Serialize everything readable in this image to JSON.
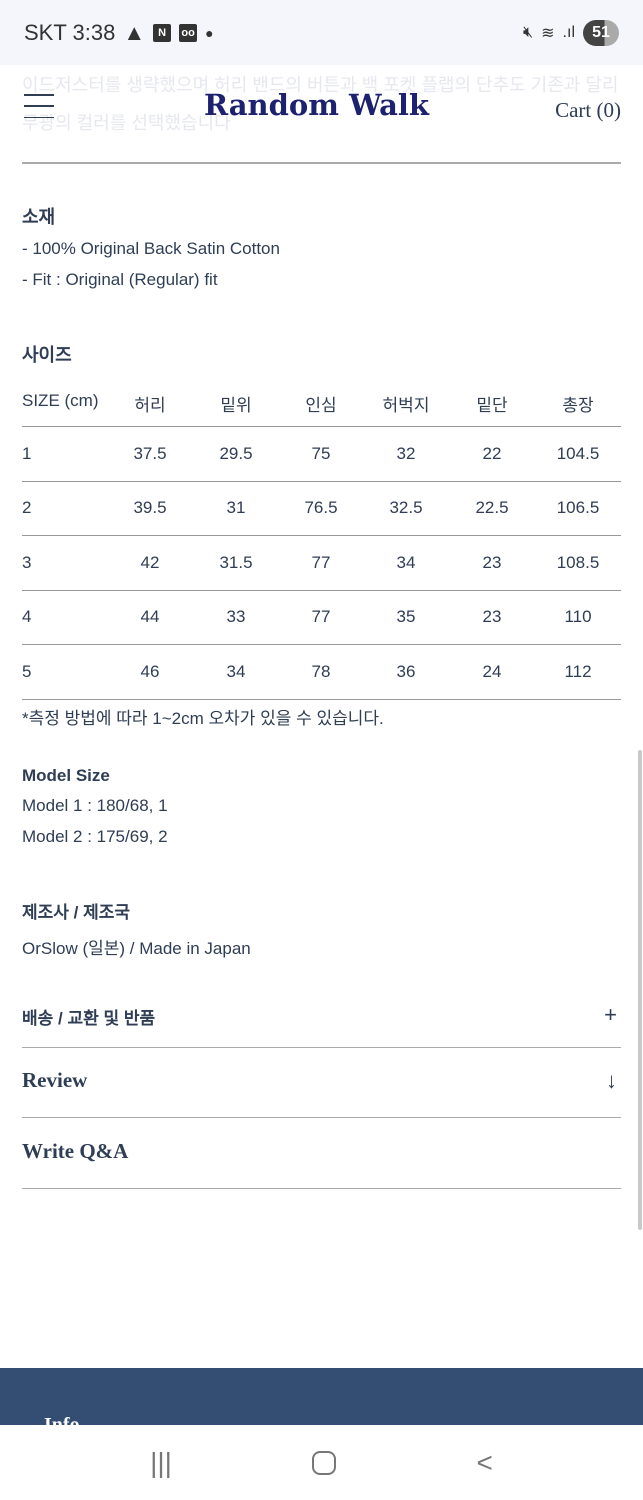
{
  "status_bar": {
    "carrier_time": "SKT 3:38",
    "battery": "51",
    "icons": [
      "warning-icon",
      "naver-icon",
      "voicemail-icon",
      "dot-icon",
      "mute-icon",
      "wifi-icon",
      "signal-icon",
      "battery-icon"
    ]
  },
  "ghost_text": "이드저스터를 생략했으며 허리 밴드의 버튼과 백 포켓 플랩의 단추도 기존과 달리 무광의 컬러를 선택했습니다",
  "header": {
    "logo": "Random Walk",
    "cart": "Cart (0)"
  },
  "material": {
    "title": "소재",
    "lines": [
      "- 100% Original Back Satin Cotton",
      "- Fit : Original (Regular) fit"
    ]
  },
  "size": {
    "title": "사이즈",
    "headers": [
      "SIZE (cm)",
      "허리",
      "밑위",
      "인심",
      "허벅지",
      "밑단",
      "총장"
    ],
    "rows": [
      [
        "1",
        "37.5",
        "29.5",
        "75",
        "32",
        "22",
        "104.5"
      ],
      [
        "2",
        "39.5",
        "31",
        "76.5",
        "32.5",
        "22.5",
        "106.5"
      ],
      [
        "3",
        "42",
        "31.5",
        "77",
        "34",
        "23",
        "108.5"
      ],
      [
        "4",
        "44",
        "33",
        "77",
        "35",
        "23",
        "110"
      ],
      [
        "5",
        "46",
        "34",
        "78",
        "36",
        "24",
        "112"
      ]
    ],
    "note": "*측정 방법에 따라 1~2cm 오차가 있을 수 있습니다."
  },
  "model": {
    "title": "Model Size",
    "lines": [
      "Model 1 : 180/68, 1",
      "Model 2 : 175/69, 2"
    ]
  },
  "maker": {
    "title": "제조사 / 제조국",
    "value": "OrSlow (일본) / Made in Japan"
  },
  "accordions": [
    {
      "label": "배송 / 교환 및 반품",
      "sign": "+"
    },
    {
      "label": "Review",
      "sign": "↓"
    },
    {
      "label": "Write Q&A",
      "sign": ""
    }
  ],
  "footer": {
    "label": "Info"
  },
  "colors": {
    "text": "#2f3d55",
    "logo": "#1c2170",
    "footer": "#344d73"
  }
}
